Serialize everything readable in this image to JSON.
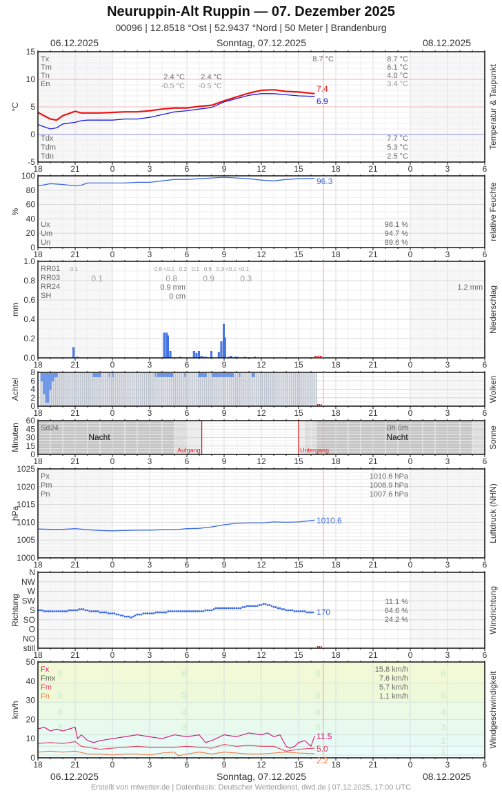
{
  "header": {
    "title": "Neuruppin-Alt Ruppin  —  07. Dezember 2025",
    "subtitle": "00096  |  12.8518 °Ost  |  52.9437 °Nord  |  50 Meter  |  Brandenburg",
    "date_left": "06.12.2025",
    "date_center": "Sonntag, 07.12.2025",
    "date_right": "08.12.2025"
  },
  "footer": {
    "text": "Erstellt von mtwetter.de | Datenbasis: Deutscher Wetterdienst, dwd.de | 07.12.2025, 17:00 UTC"
  },
  "x_axis": {
    "ticks": [
      "18",
      "21",
      "0",
      "3",
      "6",
      "9",
      "12",
      "15",
      "18",
      "21",
      "0",
      "3",
      "6"
    ],
    "start_hour": 18,
    "hours_span": 36,
    "now_marker_hour": 17
  },
  "colors": {
    "temp": "#ee1111",
    "dew": "#1a1adc",
    "humidity": "#3a6ae0",
    "precip": "#4a7ae8",
    "cloud": "#6f97e6",
    "now_line": "#f3a0a0",
    "sun_line": "#dd1111",
    "fx": "#cc1177",
    "fm": "#e04060",
    "fn": "#f07840"
  },
  "chart_data": [
    {
      "type": "line",
      "title": "Temperatur & Taupunkt",
      "ylabel": "°C",
      "ylim": [
        -5,
        15
      ],
      "yticks": [
        "15",
        "10",
        "5",
        "0",
        "-5"
      ],
      "series": [
        {
          "name": "Temperatur",
          "x": [
            18,
            19,
            19.5,
            20,
            21,
            21.5,
            22,
            23,
            0,
            1,
            2,
            3,
            4,
            5,
            6,
            7,
            8,
            9,
            10,
            11,
            12,
            13,
            14,
            15,
            16.3
          ],
          "values": [
            4.0,
            2.8,
            2.6,
            3.4,
            4.2,
            3.9,
            3.9,
            3.9,
            4.0,
            4.1,
            4.1,
            4.3,
            4.6,
            4.8,
            4.8,
            5.1,
            5.3,
            6.1,
            6.8,
            7.5,
            8.0,
            8.1,
            7.8,
            7.7,
            7.4
          ]
        },
        {
          "name": "Taupunkt",
          "x": [
            18,
            19,
            19.5,
            20,
            21,
            21.5,
            22,
            23,
            0,
            1,
            2,
            3,
            4,
            5,
            6,
            7,
            8,
            9,
            10,
            11,
            12,
            13,
            14,
            15,
            16.3
          ],
          "values": [
            1.8,
            1.0,
            1.2,
            1.9,
            2.2,
            2.5,
            2.6,
            2.6,
            2.6,
            2.8,
            2.8,
            3.1,
            3.6,
            4.1,
            4.3,
            4.6,
            4.9,
            5.9,
            6.5,
            7.1,
            7.4,
            7.4,
            7.2,
            7.0,
            6.9
          ]
        }
      ],
      "last_values": {
        "temp": "7.4",
        "dew": "6.9"
      },
      "stats_labels": [
        "Tx",
        "Tm",
        "Tn",
        "En"
      ],
      "stats_labels_dew": [
        "Tdx",
        "Tdm",
        "Tdn"
      ],
      "stats_prev_night": {
        "tn": "2.4 °C",
        "en": "-0.5 °C"
      },
      "stats_day_night": {
        "tn": "2.4 °C",
        "en": "-0.5 °C"
      },
      "stats_day": {
        "tx_now": "8.7 °C",
        "tx": "8.7 °C",
        "tm": "6.1 °C",
        "tn": "4.0 °C",
        "en": "3.4 °C",
        "tdx": "7.7 °C",
        "tdm": "5.3 °C",
        "tdn": "2.5 °C"
      }
    },
    {
      "type": "line",
      "title": "relative Feuchte",
      "ylabel": "%",
      "ylim": [
        0,
        100
      ],
      "yticks": [
        "100",
        "80",
        "60",
        "40",
        "20",
        "0"
      ],
      "series": [
        {
          "name": "Feuchte",
          "x": [
            18,
            19,
            20,
            21,
            21.5,
            22,
            23,
            0,
            1,
            2,
            3,
            4,
            5,
            6,
            7,
            8,
            9,
            10,
            11,
            12,
            13,
            14,
            15,
            16.3
          ],
          "values": [
            86,
            89,
            88,
            86,
            87,
            90,
            90,
            90,
            90,
            91,
            91,
            93,
            95,
            95,
            96,
            97,
            98,
            97,
            96,
            94,
            93,
            95,
            96,
            96.3
          ]
        }
      ],
      "last_value": "96.3",
      "stats_labels": [
        "Ux",
        "Um",
        "Un"
      ],
      "stats_day": {
        "ux": "98.1 %",
        "um": "94.7 %",
        "un": "89.6 %"
      }
    },
    {
      "type": "bar",
      "title": "Niederschlag",
      "ylabel": "mm",
      "ylim": [
        0,
        1.0
      ],
      "yticks": [
        "1.0",
        "0.8",
        "0.6",
        "0.4",
        "0.2",
        "0.0"
      ],
      "series": [
        {
          "name": "RR10min",
          "x": [
            20.8,
            21.1,
            4.1,
            4.3,
            4.4,
            4.6,
            5.4,
            6.5,
            6.7,
            6.9,
            7.1,
            7.3,
            7.5,
            7.9,
            8.5,
            8.7,
            8.9,
            9.0,
            9.3,
            9.5,
            9.8,
            10.0,
            10.6,
            11.4
          ],
          "values": [
            0.11,
            0.01,
            0.26,
            0.26,
            0.23,
            0.07,
            0.01,
            0.07,
            0.05,
            0.07,
            0.02,
            0.01,
            0.01,
            0.07,
            0.06,
            0.17,
            0.35,
            0.21,
            0.01,
            0.02,
            0.01,
            0.01,
            0.01,
            0.01
          ]
        }
      ],
      "stats_labels": [
        "RR01",
        "RR03",
        "RR24",
        "SH"
      ],
      "rr01": [
        {
          "hour": 21,
          "text": "0.1"
        },
        {
          "hour": 4,
          "text": "0.8"
        },
        {
          "hour": 5,
          "text": "<0.1"
        },
        {
          "hour": 6,
          "text": "0.2"
        },
        {
          "hour": 7,
          "text": "0.1"
        },
        {
          "hour": 8,
          "text": "0.6"
        },
        {
          "hour": 9,
          "text": "0.3"
        },
        {
          "hour": 10,
          "text": "<0.1"
        },
        {
          "hour": 11,
          "text": "<0.1"
        }
      ],
      "rr03": [
        {
          "hour": 21,
          "text": "0.1"
        },
        {
          "hour": 3,
          "text": "0.8"
        },
        {
          "hour": 6,
          "text": "0.9"
        },
        {
          "hour": 9,
          "text": "0.3"
        }
      ],
      "rr24": "0.9 mm",
      "sh": "0 cm",
      "rr_right": "1.2 mm"
    },
    {
      "type": "bar",
      "title": "Wolken",
      "ylabel": "Achtel",
      "ylim": [
        0,
        8
      ],
      "yticks": [
        "8",
        "6",
        "4",
        "2",
        "0"
      ],
      "series": [
        {
          "name": "Bedeckung",
          "x_start": 18.2,
          "x_end": 16.5,
          "values_note": "8/8 overcast mostly; low cloud dip 18.5-19.4 down to 1/8"
        }
      ],
      "low_segments": [
        {
          "from": 18.2,
          "to": 18.4,
          "value": 6
        },
        {
          "from": 18.4,
          "to": 18.6,
          "value": 3
        },
        {
          "from": 18.6,
          "to": 18.9,
          "value": 1
        },
        {
          "from": 18.9,
          "to": 19.1,
          "value": 4
        },
        {
          "from": 19.1,
          "to": 19.3,
          "value": 6
        },
        {
          "from": 19.3,
          "to": 19.6,
          "value": 7
        }
      ],
      "blue_segments": [
        [
          22.4,
          23.1
        ],
        [
          23.7,
          23.8
        ],
        [
          0.0,
          0.1
        ],
        [
          3.4,
          3.5
        ],
        [
          3.6,
          4.9
        ],
        [
          5.8,
          5.9
        ],
        [
          6.9,
          7.6
        ],
        [
          8.0,
          9.8
        ],
        [
          10.2,
          10.3
        ],
        [
          11.2,
          11.5
        ]
      ]
    },
    {
      "type": "area",
      "title": "Sonne",
      "ylabel": "Minuten",
      "ylim": [
        0,
        60
      ],
      "yticks": [
        "60",
        "45",
        "30",
        "15",
        "0"
      ],
      "sd24_label": "Sd24",
      "night_label": "Nacht",
      "sunrise_label": "Aufgang",
      "sunset_label": "Untergang",
      "sunrise_hour": 7.2,
      "sunset_hour": 15.0,
      "sd24_value": "0h 0m"
    },
    {
      "type": "line",
      "title": "Luftdruck (NHN)",
      "ylabel": "hPa",
      "ylim": [
        1000,
        1025
      ],
      "yticks": [
        "1025",
        "1020",
        "1015",
        "1010",
        "1005",
        "1000"
      ],
      "series": [
        {
          "name": "Luftdruck",
          "x": [
            18,
            19,
            20,
            21,
            22,
            23,
            0,
            1,
            2,
            3,
            4,
            5,
            6,
            7,
            8,
            9,
            10,
            11,
            12,
            13,
            14,
            15,
            16.3
          ],
          "values": [
            1008.1,
            1008.0,
            1008.0,
            1008.2,
            1007.9,
            1007.7,
            1007.6,
            1007.7,
            1007.8,
            1007.8,
            1007.9,
            1007.9,
            1008.2,
            1008.3,
            1008.7,
            1009.3,
            1009.7,
            1009.8,
            1009.8,
            1010.1,
            1010.0,
            1010.1,
            1010.6
          ]
        }
      ],
      "last_value": "1010.6",
      "stats_labels": [
        "Px",
        "Pm",
        "Pn"
      ],
      "stats_day": {
        "px": "1010.6 hPa",
        "pm": "1008.9 hPa",
        "pn": "1007.6 hPa"
      }
    },
    {
      "type": "scatter",
      "title": "Windrichtung",
      "ylabel": "Richtung",
      "ycategories": [
        "N",
        "NW",
        "W",
        "SW",
        "S",
        "SO",
        "O",
        "NO",
        "still"
      ],
      "series": [
        {
          "name": "Richtung (°)",
          "x": [
            18,
            19,
            20,
            21,
            21.5,
            22,
            23,
            0,
            0.7,
            1.3,
            1.5,
            2,
            3,
            4,
            5,
            6,
            7,
            8,
            8.3,
            9,
            10,
            11,
            11.5,
            12,
            12.3,
            12.6,
            13,
            13.5,
            14,
            15,
            16.3
          ],
          "values": [
            180,
            175,
            175,
            180,
            185,
            178,
            172,
            165,
            155,
            150,
            145,
            160,
            165,
            170,
            175,
            175,
            175,
            180,
            190,
            188,
            188,
            200,
            200,
            205,
            210,
            205,
            195,
            190,
            182,
            175,
            170
          ]
        }
      ],
      "last_value": "170",
      "stats_day": [
        "11.1 %",
        "64.6 %",
        "24.2 %"
      ]
    },
    {
      "type": "line",
      "title": "Windgeschwindigkeit",
      "ylabel": "km/h",
      "ylim": [
        0,
        50
      ],
      "yticks": [
        "50",
        "40",
        "30",
        "20",
        "10",
        "0"
      ],
      "series": [
        {
          "name": "Fx",
          "x": [
            18,
            18.5,
            19,
            19.5,
            20,
            20.5,
            21,
            21.2,
            21.5,
            22,
            22.5,
            23,
            0,
            1,
            2,
            3,
            4,
            5,
            6,
            7,
            7.5,
            8,
            9,
            10,
            11,
            12,
            12.5,
            13,
            13.5,
            14,
            14.3,
            14.7,
            15,
            15.5,
            16,
            16.3
          ],
          "values": [
            15,
            16,
            14,
            15,
            14,
            15,
            16,
            10,
            12,
            9,
            8,
            9,
            10,
            11,
            12,
            11,
            10,
            12,
            11,
            12,
            8,
            9,
            12,
            11,
            13,
            12,
            13,
            11,
            12,
            6,
            5,
            6,
            8,
            9,
            6,
            11.5
          ]
        },
        {
          "name": "Fm",
          "x": [
            18,
            19,
            20,
            21,
            21.5,
            22,
            23,
            0,
            1,
            2,
            3,
            4,
            5,
            6,
            7,
            8,
            9,
            10,
            11,
            12,
            13,
            14,
            15,
            16.3
          ],
          "values": [
            7.5,
            8,
            7.5,
            8.5,
            6,
            5.5,
            4.5,
            5,
            5.5,
            6,
            5.5,
            5.5,
            5.5,
            6,
            5.5,
            5,
            7,
            6,
            6.5,
            6,
            6,
            3.5,
            4.5,
            5.0
          ]
        },
        {
          "name": "Fn",
          "x": [
            18,
            19,
            20,
            21,
            22,
            23,
            0,
            1,
            2,
            3,
            4,
            5,
            5.3,
            6,
            7,
            8,
            9,
            10,
            11,
            12,
            13,
            14,
            15,
            16.3
          ],
          "values": [
            3,
            3.5,
            3,
            3.5,
            2,
            2,
            1.5,
            2,
            2,
            1.5,
            2.5,
            3,
            1,
            2,
            3,
            2,
            3,
            2.5,
            2,
            2,
            2.5,
            3,
            2.5,
            2.2
          ]
        }
      ],
      "last_values": {
        "fx": "11.5",
        "fm": "5.0",
        "fn": "2.2"
      },
      "stats_labels": [
        "Fx",
        "Fmx",
        "Fm",
        "Fn"
      ],
      "stats_day": {
        "fx": "15.8 km/h",
        "fmx": "7.6 km/h",
        "fm": "5.7 km/h",
        "fn": "1.1 km/h"
      },
      "beaufort_labels": [
        "6",
        "5",
        "4",
        "3",
        "2",
        "1"
      ]
    }
  ]
}
